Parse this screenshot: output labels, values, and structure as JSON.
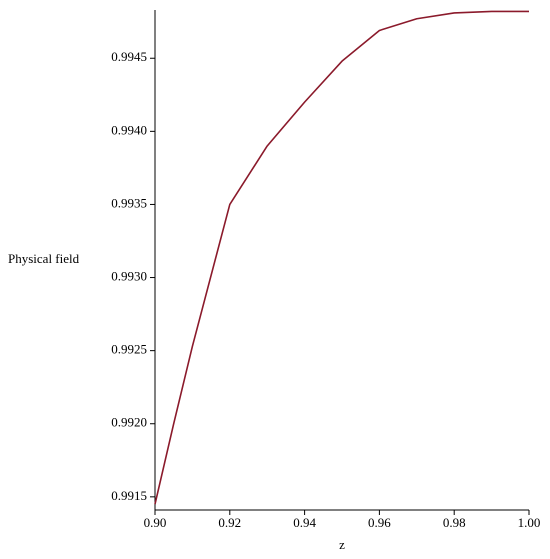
{
  "chart_data": {
    "type": "line",
    "x_label": "z",
    "y_label": "Physical field",
    "x": [
      0.9,
      0.905,
      0.91,
      0.92,
      0.93,
      0.94,
      0.95,
      0.96,
      0.97,
      0.98,
      0.99,
      1.0
    ],
    "series": [
      {
        "name": "Physical field",
        "color": "#8b1a2b",
        "values": [
          0.99145,
          0.992,
          0.99253,
          0.9935,
          0.9939,
          0.9942,
          0.99448,
          0.99469,
          0.99477,
          0.99481,
          0.99482,
          0.99482
        ]
      }
    ],
    "xlim": [
      0.9,
      1.0
    ],
    "ylim": [
      0.99141,
      0.99483
    ],
    "xticks": [
      {
        "value": 0.9,
        "label": "0.90"
      },
      0.92,
      0.94,
      0.96,
      0.98,
      {
        "value": 1,
        "label": "1.00"
      }
    ],
    "yticks": [
      0.9915,
      {
        "value": 0.992,
        "label": "0.9920"
      },
      0.9925,
      {
        "value": 0.993,
        "label": "0.9930"
      },
      0.9935,
      {
        "value": 0.994,
        "label": "0.9940"
      },
      0.9945
    ]
  }
}
